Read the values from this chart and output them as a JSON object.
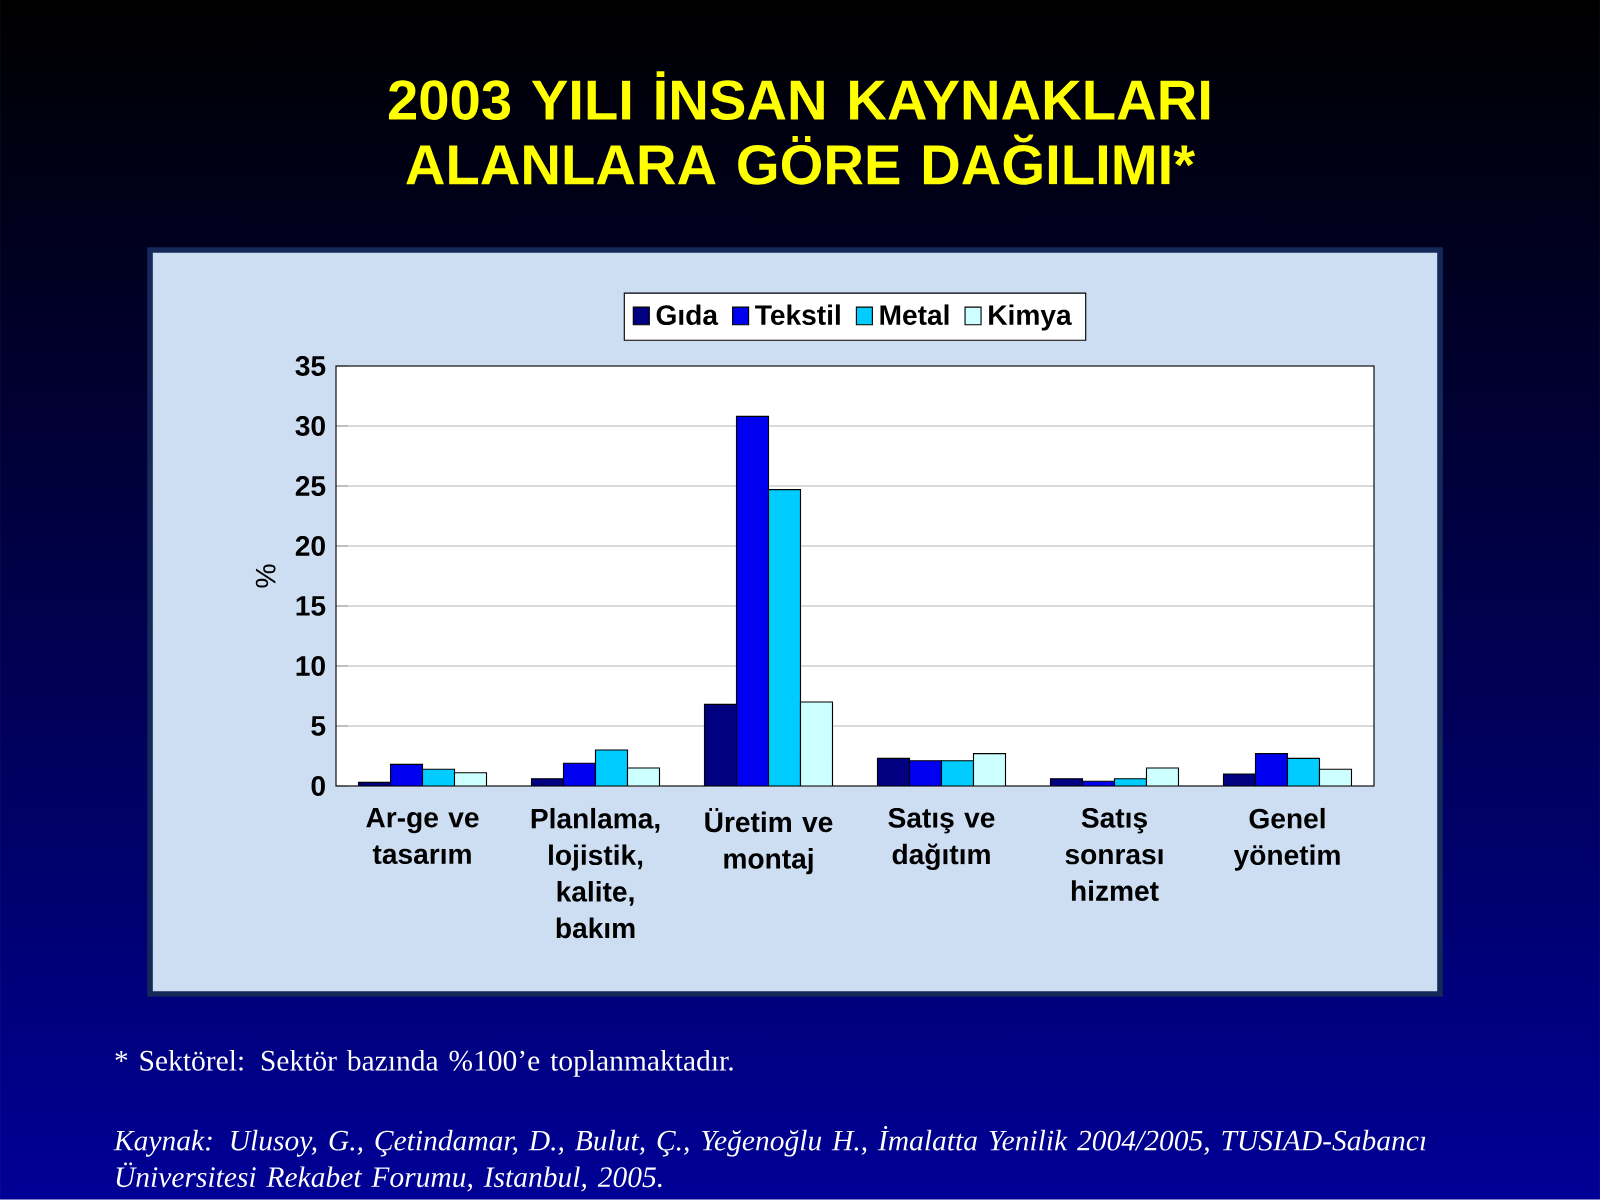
{
  "chart_data": {
    "type": "bar",
    "title": "2003 YILI İNSAN KAYNAKLARI ALANLARA GÖRE DAĞILIMI*",
    "ylabel": "%",
    "categories": [
      "Ar-ge ve tasarım",
      "Planlama, lojistik, kalite, bakım",
      "Üretim ve montaj",
      "Satış ve dağıtım",
      "Satış sonrası hizmet",
      "Genel yönetim"
    ],
    "series": [
      {
        "name": "Gıda",
        "color": "#000080",
        "values": [
          0.3,
          0.6,
          6.8,
          2.3,
          0.6,
          1.0
        ]
      },
      {
        "name": "Tekstil",
        "color": "#0000f0",
        "values": [
          1.8,
          1.9,
          30.8,
          2.1,
          0.4,
          2.7
        ]
      },
      {
        "name": "Metal",
        "color": "#00ccff",
        "values": [
          1.4,
          3.0,
          24.7,
          2.1,
          0.6,
          2.3
        ]
      },
      {
        "name": "Kimya",
        "color": "#ccffff",
        "values": [
          1.1,
          1.5,
          7.0,
          2.7,
          1.5,
          1.4
        ]
      }
    ],
    "ylim": [
      0,
      35
    ],
    "yticks": [
      0,
      5,
      10,
      15,
      20,
      25,
      30,
      35
    ],
    "grid": "y",
    "legend": "top",
    "annotations": [
      "* Sektörel: Sektör bazında %100’e toplanmaktadır.",
      "*Kaynak: Ulusoy, G., Çetindamar, D., Bulut, Ç., Yeğenoğlu H., İmalatta Yenilik 2004/2005, TUSIAD-Sabancı Üniversitesi Rekabet Forumu, Istanbul, 2005.*"
    ]
  }
}
